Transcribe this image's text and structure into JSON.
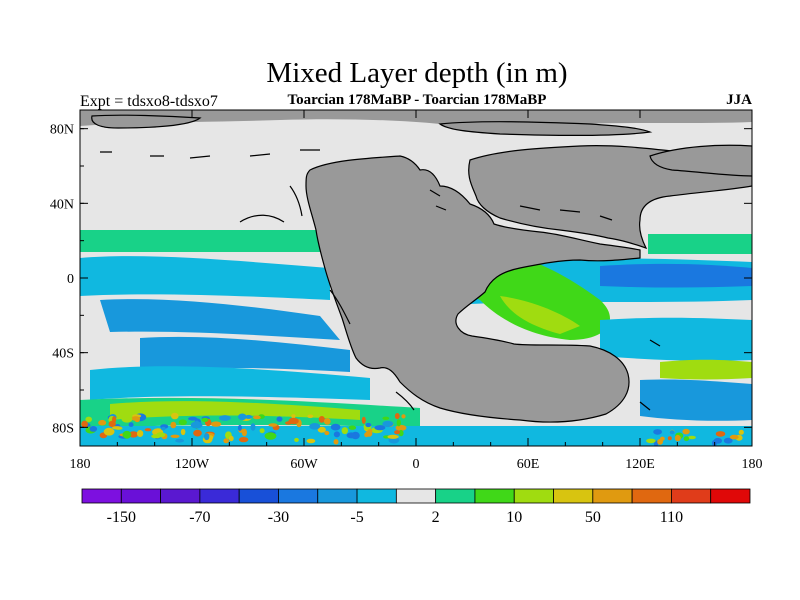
{
  "chart_data": {
    "type": "heatmap",
    "title": "Mixed Layer depth (in m)",
    "left_label": "Expt = tdsxo8-tdsxo7",
    "center_label": "Toarcian 178MaBP - Toarcian 178MaBP",
    "right_label": "JJA",
    "x_ticks": [
      "180",
      "120W",
      "60W",
      "0",
      "60E",
      "120E",
      "180"
    ],
    "x_tick_values": [
      -180,
      -120,
      -60,
      0,
      60,
      120,
      180
    ],
    "y_ticks": [
      "80N",
      "40N",
      "0",
      "40S",
      "80S"
    ],
    "y_tick_values": [
      80,
      40,
      0,
      -40,
      -80
    ],
    "xlim": [
      -180,
      180
    ],
    "ylim": [
      -90,
      90
    ],
    "colorbar": {
      "levels": [
        "-150",
        "-70",
        "-30",
        "-5",
        "2",
        "10",
        "50",
        "110"
      ],
      "colors": [
        "#7d10e0",
        "#6a10d8",
        "#5a18d0",
        "#3a2ad8",
        "#1850d8",
        "#1a78e0",
        "#1898dc",
        "#10b8e0",
        "#e6e6e6",
        "#18d288",
        "#40d818",
        "#a0dc10",
        "#d8c410",
        "#e09a10",
        "#e06810",
        "#e03c1a",
        "#e00808"
      ]
    },
    "zero_band_color": "#e6e6e6",
    "land_color": "#999999"
  }
}
